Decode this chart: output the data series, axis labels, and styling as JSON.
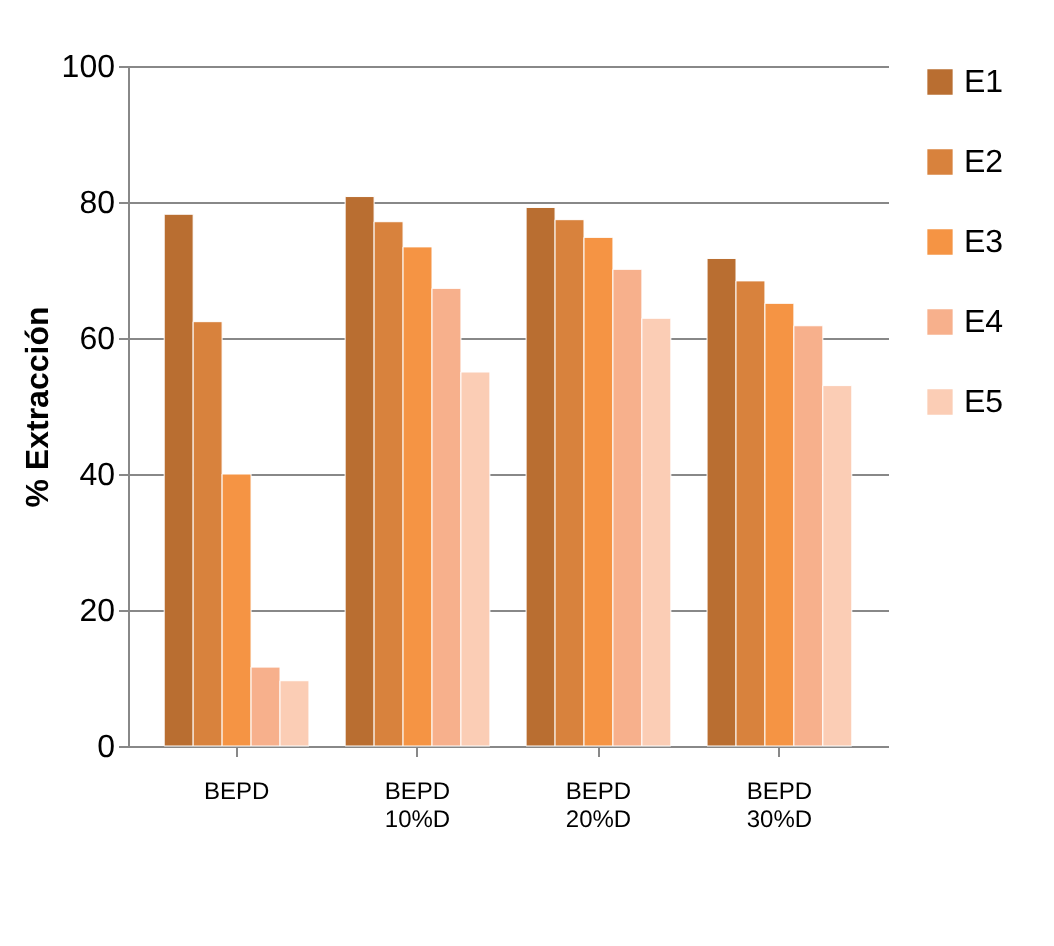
{
  "chart_data": {
    "type": "bar",
    "ylabel": "% Extracción",
    "categories": [
      "BEPD",
      "BEPD\n10%D",
      "BEPD\n20%D",
      "BEPD\n30%D"
    ],
    "series": [
      {
        "name": "E1",
        "color": "#b96e31",
        "values": [
          78.2,
          80.8,
          79.2,
          71.7
        ]
      },
      {
        "name": "E2",
        "color": "#d8823d",
        "values": [
          62.4,
          77.1,
          77.4,
          68.4
        ]
      },
      {
        "name": "E3",
        "color": "#f59444",
        "values": [
          40,
          73.4,
          74.8,
          65.1
        ]
      },
      {
        "name": "E4",
        "color": "#f7b08c",
        "values": [
          11.6,
          67.3,
          70.1,
          61.8
        ]
      },
      {
        "name": "E5",
        "color": "#fbcdb5",
        "values": [
          9.6,
          55,
          62.9,
          53
        ]
      }
    ],
    "ylim": [
      0,
      100
    ],
    "yticks": [
      0,
      20,
      40,
      60,
      80,
      100
    ],
    "grid": "y",
    "legend": "right"
  }
}
